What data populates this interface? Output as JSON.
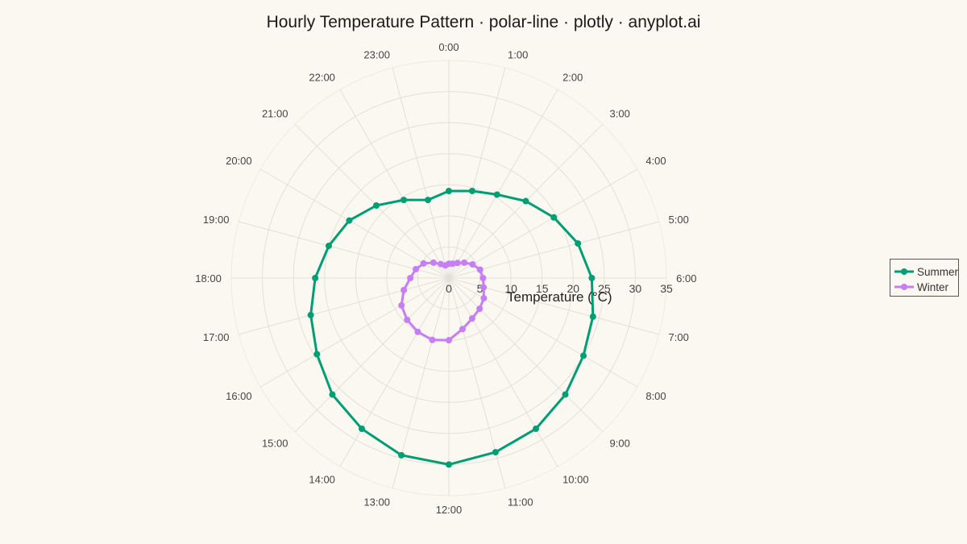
{
  "chart_data": {
    "type": "line",
    "subtype": "polar",
    "title": "Hourly Temperature Pattern · polar-line · plotly · anyplot.ai",
    "radial_axis": {
      "title": "Temperature (°C)",
      "range": [
        0,
        35
      ],
      "ticks": [
        0,
        5,
        10,
        15,
        20,
        25,
        30,
        35
      ],
      "tick_labels": [
        "0",
        "5",
        "10",
        "15",
        "20",
        "25",
        "30",
        "35"
      ]
    },
    "angular_axis": {
      "direction": "clockwise",
      "rotation": "0:00 at top",
      "categories": [
        "0:00",
        "1:00",
        "2:00",
        "3:00",
        "4:00",
        "5:00",
        "6:00",
        "7:00",
        "8:00",
        "9:00",
        "10:00",
        "11:00",
        "12:00",
        "13:00",
        "14:00",
        "15:00",
        "16:00",
        "17:00",
        "18:00",
        "19:00",
        "20:00",
        "21:00",
        "22:00",
        "23:00"
      ]
    },
    "grid": true,
    "legend_position": "right",
    "series": [
      {
        "name": "Summer",
        "color": "#009E73",
        "values": [
          14,
          14.5,
          15.5,
          17.5,
          19.5,
          21.5,
          23,
          24,
          25,
          26.5,
          28,
          29,
          30,
          29.5,
          28,
          26.5,
          24.5,
          23,
          21.5,
          20,
          18.5,
          16.5,
          14.5,
          13
        ]
      },
      {
        "name": "Winter",
        "color": "#C77DF3",
        "values": [
          2.3,
          2.4,
          2.8,
          3.5,
          4.4,
          5.2,
          5.5,
          5.8,
          6.5,
          7.0,
          7.5,
          8.5,
          10.0,
          10.3,
          10.0,
          9.5,
          8.8,
          7.5,
          6.2,
          5.5,
          4.7,
          3.5,
          2.6,
          2.1
        ]
      }
    ]
  }
}
